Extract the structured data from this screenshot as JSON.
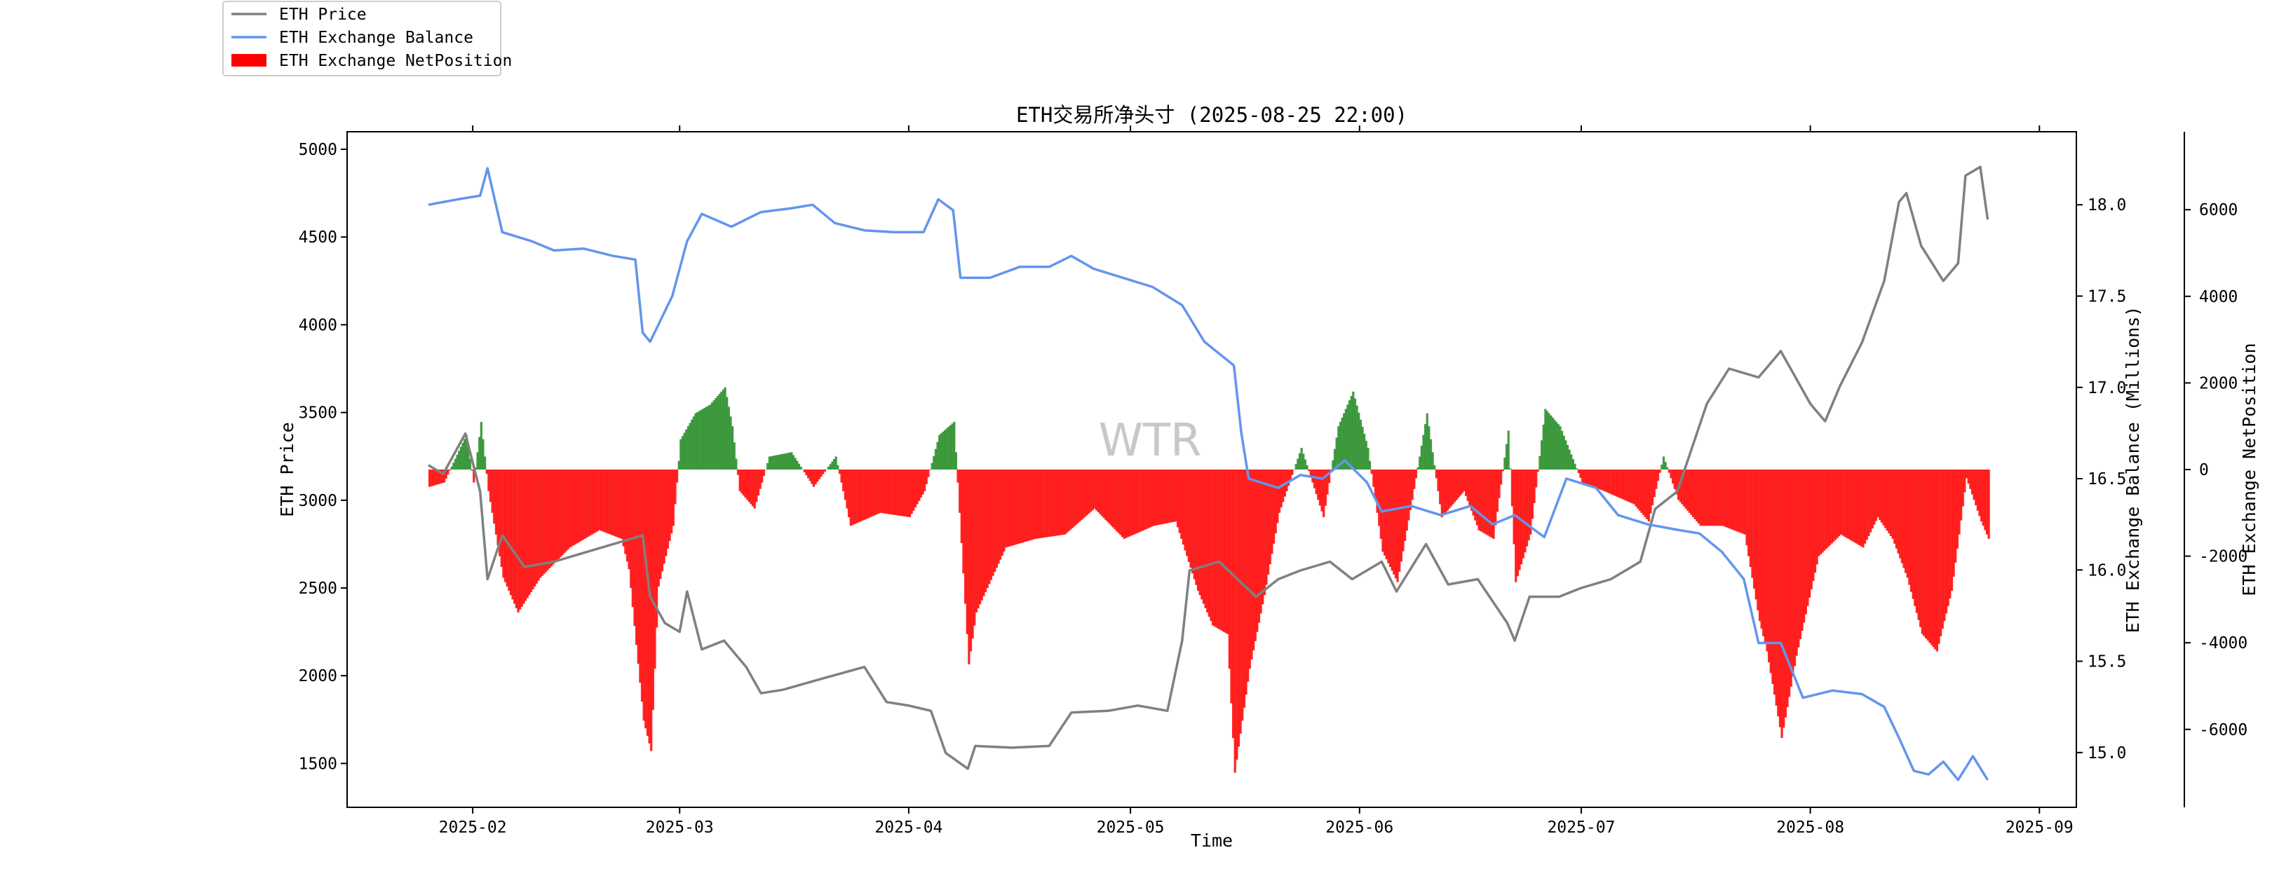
{
  "chart_data": {
    "type": "line",
    "title": "ETH交易所净头寸 (2025-08-25 22:00)",
    "xlabel": "Time",
    "ylabel_left": "ETH Price",
    "ylabel_right1": "ETH Exchange Balance (Millions)",
    "ylabel_right2": "ETH Exchange NetPosition",
    "watermark": "WTR",
    "legend_position": "top-left (outside plot)",
    "x_range": [
      "2025-01-15",
      "2025-09-06"
    ],
    "x_ticks": [
      "2025-02",
      "2025-03",
      "2025-04",
      "2025-05",
      "2025-06",
      "2025-07",
      "2025-08",
      "2025-09"
    ],
    "y_left_range": [
      1250,
      5100
    ],
    "y_left_ticks": [
      1500,
      2000,
      2500,
      3000,
      3500,
      4000,
      4500,
      5000
    ],
    "y_right1_range": [
      14.7,
      18.4
    ],
    "y_right1_ticks": [
      15.0,
      15.5,
      16.0,
      16.5,
      17.0,
      17.5,
      18.0
    ],
    "y_right2_range": [
      -7800,
      7800
    ],
    "y_right2_ticks": [
      -6000,
      -4000,
      -2000,
      0,
      2000,
      4000,
      6000
    ],
    "grid": false,
    "series": [
      {
        "name": "ETH Price",
        "type": "line",
        "axis": "left",
        "color": "#808080",
        "points": [
          [
            "2025-01-26",
            3200
          ],
          [
            "2025-01-28",
            3150
          ],
          [
            "2025-01-31",
            3380
          ],
          [
            "2025-02-02",
            3050
          ],
          [
            "2025-02-03",
            2550
          ],
          [
            "2025-02-05",
            2800
          ],
          [
            "2025-02-08",
            2620
          ],
          [
            "2025-02-12",
            2650
          ],
          [
            "2025-02-16",
            2700
          ],
          [
            "2025-02-20",
            2750
          ],
          [
            "2025-02-24",
            2800
          ],
          [
            "2025-02-25",
            2450
          ],
          [
            "2025-02-27",
            2300
          ],
          [
            "2025-03-01",
            2250
          ],
          [
            "2025-03-02",
            2480
          ],
          [
            "2025-03-04",
            2150
          ],
          [
            "2025-03-07",
            2200
          ],
          [
            "2025-03-10",
            2050
          ],
          [
            "2025-03-12",
            1900
          ],
          [
            "2025-03-15",
            1920
          ],
          [
            "2025-03-20",
            1980
          ],
          [
            "2025-03-26",
            2050
          ],
          [
            "2025-03-29",
            1850
          ],
          [
            "2025-04-01",
            1830
          ],
          [
            "2025-04-04",
            1800
          ],
          [
            "2025-04-06",
            1560
          ],
          [
            "2025-04-09",
            1470
          ],
          [
            "2025-04-10",
            1600
          ],
          [
            "2025-04-15",
            1590
          ],
          [
            "2025-04-20",
            1600
          ],
          [
            "2025-04-23",
            1790
          ],
          [
            "2025-04-28",
            1800
          ],
          [
            "2025-05-02",
            1830
          ],
          [
            "2025-05-06",
            1800
          ],
          [
            "2025-05-08",
            2200
          ],
          [
            "2025-05-09",
            2600
          ],
          [
            "2025-05-13",
            2650
          ],
          [
            "2025-05-18",
            2450
          ],
          [
            "2025-05-21",
            2550
          ],
          [
            "2025-05-24",
            2600
          ],
          [
            "2025-05-28",
            2650
          ],
          [
            "2025-05-31",
            2550
          ],
          [
            "2025-06-04",
            2650
          ],
          [
            "2025-06-06",
            2480
          ],
          [
            "2025-06-10",
            2750
          ],
          [
            "2025-06-13",
            2520
          ],
          [
            "2025-06-17",
            2550
          ],
          [
            "2025-06-21",
            2300
          ],
          [
            "2025-06-22",
            2200
          ],
          [
            "2025-06-24",
            2450
          ],
          [
            "2025-06-28",
            2450
          ],
          [
            "2025-07-01",
            2500
          ],
          [
            "2025-07-05",
            2550
          ],
          [
            "2025-07-09",
            2650
          ],
          [
            "2025-07-11",
            2950
          ],
          [
            "2025-07-14",
            3050
          ],
          [
            "2025-07-16",
            3300
          ],
          [
            "2025-07-18",
            3550
          ],
          [
            "2025-07-21",
            3750
          ],
          [
            "2025-07-25",
            3700
          ],
          [
            "2025-07-28",
            3850
          ],
          [
            "2025-08-01",
            3550
          ],
          [
            "2025-08-03",
            3450
          ],
          [
            "2025-08-05",
            3650
          ],
          [
            "2025-08-08",
            3900
          ],
          [
            "2025-08-11",
            4250
          ],
          [
            "2025-08-13",
            4700
          ],
          [
            "2025-08-14",
            4750
          ],
          [
            "2025-08-16",
            4450
          ],
          [
            "2025-08-19",
            4250
          ],
          [
            "2025-08-21",
            4350
          ],
          [
            "2025-08-22",
            4850
          ],
          [
            "2025-08-24",
            4900
          ],
          [
            "2025-08-25",
            4600
          ]
        ]
      },
      {
        "name": "ETH Exchange Balance",
        "type": "line",
        "axis": "right1",
        "color": "#6495ed",
        "points": [
          [
            "2025-01-26",
            18.0
          ],
          [
            "2025-01-30",
            18.03
          ],
          [
            "2025-02-02",
            18.05
          ],
          [
            "2025-02-03",
            18.2
          ],
          [
            "2025-02-05",
            17.85
          ],
          [
            "2025-02-09",
            17.8
          ],
          [
            "2025-02-12",
            17.75
          ],
          [
            "2025-02-16",
            17.76
          ],
          [
            "2025-02-20",
            17.72
          ],
          [
            "2025-02-23",
            17.7
          ],
          [
            "2025-02-24",
            17.3
          ],
          [
            "2025-02-25",
            17.25
          ],
          [
            "2025-02-28",
            17.5
          ],
          [
            "2025-03-02",
            17.8
          ],
          [
            "2025-03-04",
            17.95
          ],
          [
            "2025-03-08",
            17.88
          ],
          [
            "2025-03-12",
            17.96
          ],
          [
            "2025-03-16",
            17.98
          ],
          [
            "2025-03-19",
            18.0
          ],
          [
            "2025-03-22",
            17.9
          ],
          [
            "2025-03-26",
            17.86
          ],
          [
            "2025-03-30",
            17.85
          ],
          [
            "2025-04-03",
            17.85
          ],
          [
            "2025-04-05",
            18.03
          ],
          [
            "2025-04-07",
            17.97
          ],
          [
            "2025-04-08",
            17.6
          ],
          [
            "2025-04-12",
            17.6
          ],
          [
            "2025-04-16",
            17.66
          ],
          [
            "2025-04-20",
            17.66
          ],
          [
            "2025-04-23",
            17.72
          ],
          [
            "2025-04-26",
            17.65
          ],
          [
            "2025-04-30",
            17.6
          ],
          [
            "2025-05-04",
            17.55
          ],
          [
            "2025-05-08",
            17.45
          ],
          [
            "2025-05-11",
            17.25
          ],
          [
            "2025-05-15",
            17.12
          ],
          [
            "2025-05-16",
            16.75
          ],
          [
            "2025-05-17",
            16.5
          ],
          [
            "2025-05-21",
            16.45
          ],
          [
            "2025-05-24",
            16.52
          ],
          [
            "2025-05-27",
            16.5
          ],
          [
            "2025-05-30",
            16.6
          ],
          [
            "2025-06-02",
            16.48
          ],
          [
            "2025-06-04",
            16.32
          ],
          [
            "2025-06-08",
            16.35
          ],
          [
            "2025-06-12",
            16.3
          ],
          [
            "2025-06-16",
            16.35
          ],
          [
            "2025-06-19",
            16.25
          ],
          [
            "2025-06-22",
            16.3
          ],
          [
            "2025-06-26",
            16.18
          ],
          [
            "2025-06-29",
            16.5
          ],
          [
            "2025-07-03",
            16.45
          ],
          [
            "2025-07-06",
            16.3
          ],
          [
            "2025-07-10",
            16.25
          ],
          [
            "2025-07-14",
            16.22
          ],
          [
            "2025-07-17",
            16.2
          ],
          [
            "2025-07-20",
            16.1
          ],
          [
            "2025-07-23",
            15.95
          ],
          [
            "2025-07-25",
            15.6
          ],
          [
            "2025-07-28",
            15.6
          ],
          [
            "2025-07-31",
            15.3
          ],
          [
            "2025-08-04",
            15.34
          ],
          [
            "2025-08-08",
            15.32
          ],
          [
            "2025-08-11",
            15.25
          ],
          [
            "2025-08-13",
            15.08
          ],
          [
            "2025-08-15",
            14.9
          ],
          [
            "2025-08-17",
            14.88
          ],
          [
            "2025-08-19",
            14.95
          ],
          [
            "2025-08-21",
            14.85
          ],
          [
            "2025-08-23",
            14.98
          ],
          [
            "2025-08-25",
            14.85
          ]
        ]
      },
      {
        "name": "ETH Exchange NetPosition",
        "type": "bar",
        "axis": "right2",
        "color_positive": "#228b22",
        "color_negative": "#ff0000",
        "points": [
          [
            "2025-01-26",
            -400
          ],
          [
            "2025-01-28",
            -300
          ],
          [
            "2025-01-31",
            800
          ],
          [
            "2025-02-01",
            -300
          ],
          [
            "2025-02-02",
            1100
          ],
          [
            "2025-02-03",
            -500
          ],
          [
            "2025-02-05",
            -2500
          ],
          [
            "2025-02-07",
            -3300
          ],
          [
            "2025-02-10",
            -2500
          ],
          [
            "2025-02-14",
            -1800
          ],
          [
            "2025-02-18",
            -1400
          ],
          [
            "2025-02-21",
            -1600
          ],
          [
            "2025-02-22",
            -2300
          ],
          [
            "2025-02-24",
            -5800
          ],
          [
            "2025-02-25",
            -6500
          ],
          [
            "2025-02-26",
            -2700
          ],
          [
            "2025-02-28",
            -1300
          ],
          [
            "2025-03-01",
            700
          ],
          [
            "2025-03-03",
            1300
          ],
          [
            "2025-03-05",
            1500
          ],
          [
            "2025-03-07",
            1900
          ],
          [
            "2025-03-08",
            1000
          ],
          [
            "2025-03-09",
            -500
          ],
          [
            "2025-03-11",
            -900
          ],
          [
            "2025-03-13",
            300
          ],
          [
            "2025-03-16",
            400
          ],
          [
            "2025-03-19",
            -400
          ],
          [
            "2025-03-22",
            300
          ],
          [
            "2025-03-24",
            -1300
          ],
          [
            "2025-03-28",
            -1000
          ],
          [
            "2025-04-01",
            -1100
          ],
          [
            "2025-04-03",
            -500
          ],
          [
            "2025-04-05",
            800
          ],
          [
            "2025-04-07",
            1100
          ],
          [
            "2025-04-09",
            -4500
          ],
          [
            "2025-04-10",
            -3300
          ],
          [
            "2025-04-14",
            -1800
          ],
          [
            "2025-04-18",
            -1600
          ],
          [
            "2025-04-22",
            -1500
          ],
          [
            "2025-04-26",
            -900
          ],
          [
            "2025-04-30",
            -1600
          ],
          [
            "2025-05-04",
            -1300
          ],
          [
            "2025-05-07",
            -1200
          ],
          [
            "2025-05-10",
            -2800
          ],
          [
            "2025-05-12",
            -3600
          ],
          [
            "2025-05-14",
            -3800
          ],
          [
            "2025-05-15",
            -7000
          ],
          [
            "2025-05-17",
            -4600
          ],
          [
            "2025-05-19",
            -2900
          ],
          [
            "2025-05-21",
            -1000
          ],
          [
            "2025-05-24",
            500
          ],
          [
            "2025-05-27",
            -1100
          ],
          [
            "2025-05-29",
            1000
          ],
          [
            "2025-05-31",
            1800
          ],
          [
            "2025-06-02",
            500
          ],
          [
            "2025-06-04",
            -1900
          ],
          [
            "2025-06-06",
            -2600
          ],
          [
            "2025-06-08",
            -700
          ],
          [
            "2025-06-10",
            1300
          ],
          [
            "2025-06-12",
            -1100
          ],
          [
            "2025-06-15",
            -500
          ],
          [
            "2025-06-17",
            -1400
          ],
          [
            "2025-06-19",
            -1600
          ],
          [
            "2025-06-21",
            900
          ],
          [
            "2025-06-22",
            -2600
          ],
          [
            "2025-06-24",
            -1500
          ],
          [
            "2025-06-26",
            1400
          ],
          [
            "2025-06-28",
            1000
          ],
          [
            "2025-07-01",
            -300
          ],
          [
            "2025-07-04",
            -500
          ],
          [
            "2025-07-08",
            -800
          ],
          [
            "2025-07-10",
            -1200
          ],
          [
            "2025-07-12",
            300
          ],
          [
            "2025-07-14",
            -700
          ],
          [
            "2025-07-17",
            -1300
          ],
          [
            "2025-07-20",
            -1300
          ],
          [
            "2025-07-23",
            -1500
          ],
          [
            "2025-07-25",
            -3500
          ],
          [
            "2025-07-26",
            -4200
          ],
          [
            "2025-07-28",
            -6200
          ],
          [
            "2025-07-30",
            -4300
          ],
          [
            "2025-08-02",
            -2000
          ],
          [
            "2025-08-05",
            -1500
          ],
          [
            "2025-08-08",
            -1800
          ],
          [
            "2025-08-10",
            -1100
          ],
          [
            "2025-08-12",
            -1600
          ],
          [
            "2025-08-14",
            -2500
          ],
          [
            "2025-08-16",
            -3800
          ],
          [
            "2025-08-18",
            -4200
          ],
          [
            "2025-08-20",
            -2800
          ],
          [
            "2025-08-22",
            -200
          ],
          [
            "2025-08-24",
            -1200
          ],
          [
            "2025-08-25",
            -1600
          ]
        ]
      }
    ]
  }
}
